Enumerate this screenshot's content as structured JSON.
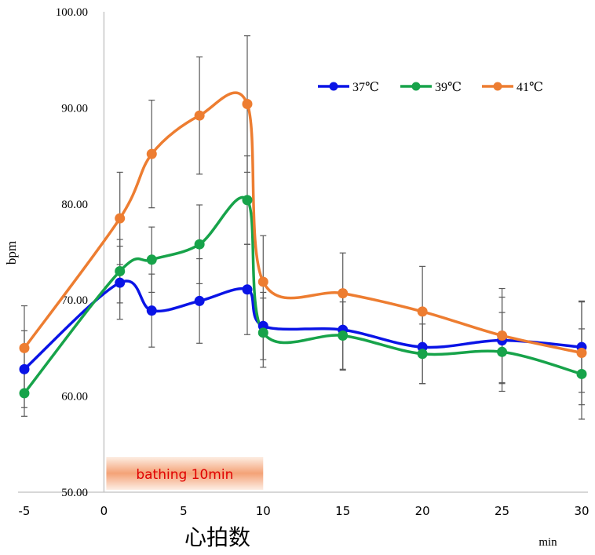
{
  "chart_data": {
    "type": "line",
    "ylabel": "bpm",
    "xlabel": "min",
    "caption": "心拍数",
    "x_ticks": [
      -5,
      0,
      5,
      10,
      15,
      20,
      25,
      30
    ],
    "y_ticks": [
      "50.00",
      "60.00",
      "70.00",
      "80.00",
      "90.00",
      "100.00"
    ],
    "xlim": [
      -5,
      30
    ],
    "ylim": [
      50,
      100
    ],
    "annotation": "bathing 10min",
    "annotation_range": [
      0,
      10
    ],
    "x": [
      -5,
      1,
      3,
      6,
      9,
      10,
      15,
      20,
      25,
      30
    ],
    "series": [
      {
        "name": "37℃",
        "color": "#0a14e6",
        "values": [
          62.8,
          71.8,
          68.9,
          69.9,
          71.1,
          67.3,
          66.9,
          65.1,
          65.8,
          65.1
        ],
        "error": [
          4.0,
          3.8,
          3.8,
          4.4,
          4.7,
          3.5,
          4.2,
          3.8,
          4.5,
          4.7
        ]
      },
      {
        "name": "39℃",
        "color": "#17a34a",
        "values": [
          60.3,
          73.0,
          74.2,
          75.8,
          80.4,
          66.6,
          66.3,
          64.4,
          64.6,
          62.3
        ],
        "error": [
          2.4,
          3.3,
          3.4,
          4.1,
          4.6,
          3.6,
          3.5,
          3.1,
          4.1,
          4.7
        ]
      },
      {
        "name": "41℃",
        "color": "#ed7d31",
        "values": [
          65.0,
          78.5,
          85.2,
          89.2,
          90.4,
          71.9,
          70.7,
          68.8,
          66.3,
          64.5
        ],
        "error": [
          4.4,
          4.8,
          5.6,
          6.1,
          7.1,
          4.8,
          4.2,
          4.7,
          4.9,
          5.4
        ]
      }
    ],
    "legend_position": "top-right",
    "grid": false
  }
}
